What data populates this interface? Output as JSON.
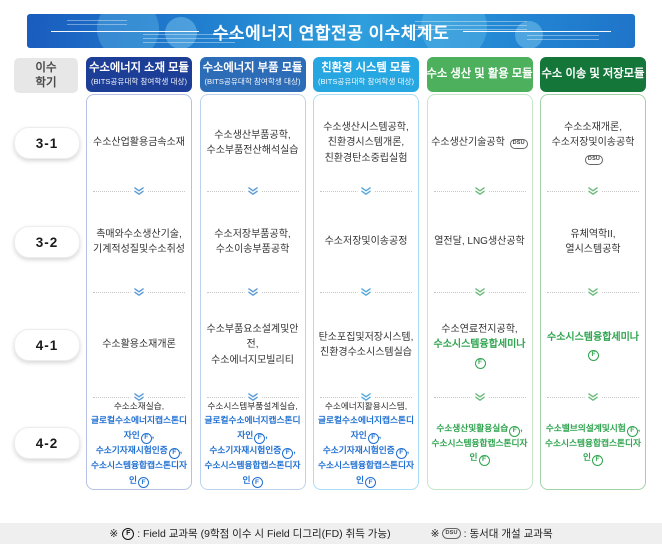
{
  "title": "수소에너지 연합전공 이수체계도",
  "semester_column": {
    "header_line1": "이수",
    "header_line2": "학기",
    "semesters": [
      "3-1",
      "3-2",
      "4-1",
      "4-2"
    ]
  },
  "badges": {
    "field_label": "F",
    "dsu_label": "DSU"
  },
  "columns": [
    {
      "id": "hydrogen-materials",
      "title": "수소에너지 소재 모듈",
      "subtitle": "(BITS공유대학 참여학생 대상)",
      "header_color": "#1c3e96",
      "border_color": "#b6c0e3",
      "accent": "#1f6fd2",
      "chevron_color": "#5b9bd5",
      "cells": [
        [
          {
            "t": "수소산업활용금속소재",
            "c": "dark"
          }
        ],
        [
          {
            "t": "촉매와수소생산기술,",
            "c": "dark"
          },
          {
            "t": "기계적성질및수소취성",
            "c": "dark"
          }
        ],
        [
          {
            "t": "수소활용소재개론",
            "c": "dark"
          }
        ],
        [
          {
            "t": "수소소재실습,",
            "c": "dark"
          },
          {
            "t": "글로컬수소에너지캡스톤디자인ⓕ,",
            "c": "accent"
          },
          {
            "t": "수소기자재시험인증ⓕ,",
            "c": "accent"
          },
          {
            "t": "수소시스템융합캡스톤디자인ⓕ",
            "c": "accent"
          }
        ]
      ]
    },
    {
      "id": "hydrogen-parts",
      "title": "수소에너지 부품 모듈",
      "subtitle": "(BITS공유대학 참여학생 대상)",
      "header_color": "#2d6cb7",
      "border_color": "#bdd3ed",
      "accent": "#1f6fd2",
      "chevron_color": "#5b9bd5",
      "cells": [
        [
          {
            "t": "수소생산부품공학,",
            "c": "dark"
          },
          {
            "t": "수소부품전산해석실습",
            "c": "dark"
          }
        ],
        [
          {
            "t": "수소저장부품공학,",
            "c": "dark"
          },
          {
            "t": "수소이송부품공학",
            "c": "dark"
          }
        ],
        [
          {
            "t": "수소부품요소설계및안전,",
            "c": "dark"
          },
          {
            "t": "수소에너지모빌리티",
            "c": "dark"
          }
        ],
        [
          {
            "t": "수소시스템부품설계실습,",
            "c": "dark"
          },
          {
            "t": "글로컬수소에너지캡스톤디자인ⓕ,",
            "c": "accent"
          },
          {
            "t": "수소기자재시험인증ⓕ,",
            "c": "accent"
          },
          {
            "t": "수소시스템융합캡스톤디자인ⓕ",
            "c": "accent"
          }
        ]
      ]
    },
    {
      "id": "eco-system",
      "title": "친환경 시스템 모듈",
      "subtitle": "(BITS공유대학 참여학생 대상)",
      "header_color": "#27a7e1",
      "border_color": "#a9ddf6",
      "accent": "#1f6fd2",
      "chevron_color": "#54a8dd",
      "cells": [
        [
          {
            "t": "수소생산시스템공학,",
            "c": "dark"
          },
          {
            "t": "친환경시스템개론,",
            "c": "dark"
          },
          {
            "t": "친환경탄소중립실험",
            "c": "dark"
          }
        ],
        [
          {
            "t": "수소저장및이송공정",
            "c": "dark"
          }
        ],
        [
          {
            "t": "탄소포집및저장시스템,",
            "c": "dark"
          },
          {
            "t": "친환경수소시스템실습",
            "c": "dark"
          }
        ],
        [
          {
            "t": "수소에너지활용시스템,",
            "c": "dark"
          },
          {
            "t": "글로컬수소에너지캡스톤디자인ⓕ,",
            "c": "accent"
          },
          {
            "t": "수소기자재시험인증ⓕ,",
            "c": "accent"
          },
          {
            "t": "수소시스템융합캡스톤디자인ⓕ",
            "c": "accent"
          }
        ]
      ]
    },
    {
      "id": "production-utilization",
      "title": "수소 생산 및 활용 모듈",
      "subtitle": null,
      "header_color": "#4cb05c",
      "border_color": "#c6e5c9",
      "accent": "#2ea44e",
      "chevron_color": "#6cba7c",
      "cells": [
        [
          {
            "t": "수소생산기술공학 ⓓ",
            "c": "dark"
          }
        ],
        [
          {
            "t": "열전달, LNG생산공학",
            "c": "dark"
          }
        ],
        [
          {
            "t": "수소연료전지공학,",
            "c": "dark"
          },
          {
            "t": "수소시스템융합세미나ⓕ",
            "c": "accent"
          }
        ],
        [
          {
            "t": "수소생산및활용실습ⓕ,",
            "c": "accent"
          },
          {
            "t": "수소시스템융합캡스톤디자인ⓕ",
            "c": "accent"
          }
        ]
      ]
    },
    {
      "id": "transport-storage",
      "title": "수소 이송 및 저장모듈",
      "subtitle": null,
      "header_color": "#15763a",
      "border_color": "#a3d1a7",
      "accent": "#2ea44e",
      "chevron_color": "#6cba7c",
      "cells": [
        [
          {
            "t": "수소소재개론,",
            "c": "dark"
          },
          {
            "t": "수소저장및이송공학 ⓓ",
            "c": "dark"
          }
        ],
        [
          {
            "t": "유체역학II,",
            "c": "dark"
          },
          {
            "t": "열시스템공학",
            "c": "dark"
          }
        ],
        [
          {
            "t": "수소시스템융합세미나ⓕ",
            "c": "accent"
          }
        ],
        [
          {
            "t": "수소밸브의설계및시험ⓕ,",
            "c": "accent"
          },
          {
            "t": "수소시스템융합캡스톤디자인ⓕ",
            "c": "accent"
          }
        ]
      ]
    }
  ],
  "legend": {
    "items": [
      {
        "prefix": "※",
        "badge": "field",
        "text": ": Field 교과목 (9학점 이수 시 Field 디그리(FD) 취득 가능)"
      },
      {
        "prefix": "※",
        "badge": "dsu",
        "text": ": 동서대 개설 교과목"
      }
    ]
  }
}
